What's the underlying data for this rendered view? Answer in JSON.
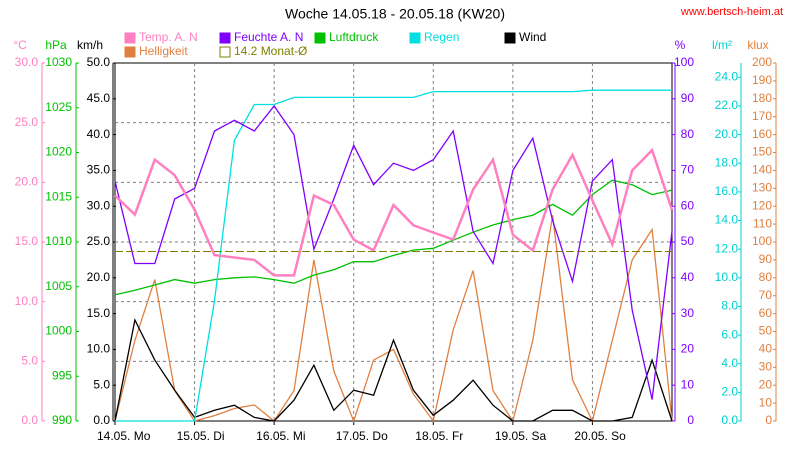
{
  "chart_data": {
    "type": "line",
    "title": "Woche 14.05.18 - 20.05.18 (KW20)",
    "source": "www.bertsch-heim.at",
    "xlim": [
      0,
      7
    ],
    "xticks": [
      {
        "value": 0,
        "label": "14.05.  Mo"
      },
      {
        "value": 1,
        "label": "15.05.  Di"
      },
      {
        "value": 2,
        "label": "16.05.  Mi"
      },
      {
        "value": 3,
        "label": "17.05.  Do"
      },
      {
        "value": 4,
        "label": "18.05.  Fr"
      },
      {
        "value": 5,
        "label": "19.05.  Sa"
      },
      {
        "value": 6,
        "label": "20.05.  So"
      }
    ],
    "x": [
      0,
      0.25,
      0.5,
      0.75,
      1,
      1.25,
      1.5,
      1.75,
      2,
      2.25,
      2.5,
      2.75,
      3,
      3.25,
      3.5,
      3.75,
      4,
      4.25,
      4.5,
      4.75,
      5,
      5.25,
      5.5,
      5.75,
      6,
      6.25,
      6.5,
      6.75,
      7
    ],
    "grid": true,
    "axes": [
      {
        "unit": "°C",
        "color": "#ff80c0",
        "lim": [
          0,
          30
        ],
        "ticks": [
          {
            "value": 0,
            "label": "0.0"
          },
          {
            "value": 5,
            "label": "5.0"
          },
          {
            "value": 10,
            "label": "10.0"
          },
          {
            "value": 15,
            "label": "15.0"
          },
          {
            "value": 20,
            "label": "20.0"
          },
          {
            "value": 25,
            "label": "25.0"
          },
          {
            "value": 30,
            "label": "30.0"
          }
        ]
      },
      {
        "unit": "hPa",
        "color": "#00c000",
        "lim": [
          990,
          1030
        ],
        "ticks": [
          990,
          995,
          1000,
          1005,
          1010,
          1015,
          1020,
          1025,
          1030
        ]
      },
      {
        "unit": "km/h",
        "color": "#000000",
        "lim": [
          0,
          50
        ],
        "ticks": [
          {
            "value": 0,
            "label": "0.0"
          },
          {
            "value": 5,
            "label": "5.0"
          },
          {
            "value": 10,
            "label": "10.0"
          },
          {
            "value": 15,
            "label": "15.0"
          },
          {
            "value": 20,
            "label": "20.0"
          },
          {
            "value": 25,
            "label": "25.0"
          },
          {
            "value": 30,
            "label": "30.0"
          },
          {
            "value": 35,
            "label": "35.0"
          },
          {
            "value": 40,
            "label": "40.0"
          },
          {
            "value": 45,
            "label": "45.0"
          },
          {
            "value": 50,
            "label": "50.0"
          }
        ]
      },
      {
        "unit": "%",
        "color": "#8000ff",
        "lim": [
          0,
          100
        ],
        "ticks": [
          0,
          10,
          20,
          30,
          40,
          50,
          60,
          70,
          80,
          90,
          100
        ]
      },
      {
        "unit": "l/m²",
        "color": "#00d0d0",
        "lim": [
          0,
          25
        ],
        "ticks": [
          {
            "value": 0,
            "label": "0.0"
          },
          {
            "value": 2,
            "label": "2.0"
          },
          {
            "value": 4,
            "label": "4.0"
          },
          {
            "value": 6,
            "label": "6.0"
          },
          {
            "value": 8,
            "label": "8.0"
          },
          {
            "value": 10,
            "label": "10.0"
          },
          {
            "value": 12,
            "label": "12.0"
          },
          {
            "value": 14,
            "label": "14.0"
          },
          {
            "value": 16,
            "label": "16.0"
          },
          {
            "value": 18,
            "label": "18.0"
          },
          {
            "value": 20,
            "label": "20.0"
          },
          {
            "value": 22,
            "label": "22.0"
          },
          {
            "value": 24,
            "label": "24.0"
          }
        ]
      },
      {
        "unit": "klux",
        "color": "#e08040",
        "lim": [
          0,
          200
        ],
        "ticks": [
          0,
          10,
          20,
          30,
          40,
          50,
          60,
          70,
          80,
          90,
          100,
          110,
          120,
          130,
          140,
          150,
          160,
          170,
          180,
          190,
          200
        ]
      }
    ],
    "series": [
      {
        "name": "Temp. A. N",
        "color": "#ff80c0",
        "axis": 0,
        "values": [
          18.9,
          17.3,
          21.9,
          20.6,
          17.7,
          13.9,
          13.7,
          13.5,
          12.2,
          12.2,
          18.9,
          18.1,
          15.2,
          14.3,
          18.1,
          16.4,
          15.8,
          15.2,
          19.4,
          21.9,
          15.6,
          14.3,
          19.4,
          22.3,
          18.5,
          14.8,
          21.0,
          22.7,
          17.7
        ]
      },
      {
        "name": "Feuchte A. N",
        "color": "#8000ff",
        "axis": 3,
        "values": [
          67,
          44,
          44,
          62,
          65,
          81,
          84,
          81,
          88,
          80,
          48,
          62,
          77,
          66,
          72,
          70,
          73,
          81,
          53,
          44,
          70,
          79,
          56,
          39,
          67,
          73,
          31,
          6,
          53
        ]
      },
      {
        "name": "Luftdruck",
        "color": "#00c000",
        "axis": 1,
        "values": [
          1004.1,
          1004.6,
          1005.2,
          1005.8,
          1005.4,
          1005.8,
          1006.0,
          1006.1,
          1005.8,
          1005.4,
          1006.3,
          1006.9,
          1007.8,
          1007.8,
          1008.5,
          1009.1,
          1009.3,
          1010.2,
          1011.1,
          1011.9,
          1012.5,
          1013.0,
          1014.2,
          1013.0,
          1015.3,
          1016.9,
          1016.4,
          1015.3,
          1015.8
        ]
      },
      {
        "name": "Regen",
        "color": "#00e0e0",
        "axis": 4,
        "values": [
          0,
          0,
          0,
          0,
          0,
          8.4,
          19.6,
          22.1,
          22.1,
          22.6,
          22.6,
          22.6,
          22.6,
          22.6,
          22.6,
          22.6,
          23.0,
          23.0,
          23.0,
          23.0,
          23.0,
          23.0,
          23.0,
          23.0,
          23.1,
          23.1,
          23.1,
          23.1,
          23.1
        ]
      },
      {
        "name": "Wind",
        "color": "#000000",
        "axis": 2,
        "values": [
          0,
          14.1,
          8.5,
          4.3,
          0.5,
          1.5,
          2.2,
          0.5,
          0,
          2.9,
          7.8,
          1.5,
          4.3,
          3.6,
          11.3,
          4.3,
          0.8,
          2.9,
          5.7,
          2.2,
          0,
          0,
          1.5,
          1.5,
          0,
          0,
          0.5,
          8.5,
          0
        ]
      },
      {
        "name": "Helligkeit",
        "color": "#e08040",
        "axis": 5,
        "values": [
          0,
          45,
          79,
          17,
          0,
          3,
          7,
          9,
          0,
          17,
          90,
          28,
          0,
          34,
          40,
          15,
          0,
          51,
          84,
          17,
          0,
          45,
          115,
          23,
          0,
          45,
          90,
          107,
          0
        ]
      }
    ],
    "reference": {
      "label": "14.2 Monat-Ø",
      "value": 14.2,
      "axis": 0,
      "color": "#808000"
    }
  }
}
